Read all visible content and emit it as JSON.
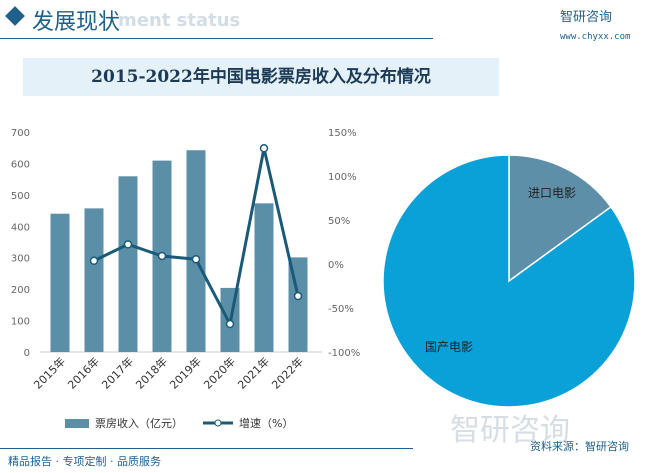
{
  "header": {
    "title": "发展现状",
    "subtitle": "ment status",
    "logo": "智研咨询",
    "url": "www.chyxx.com"
  },
  "footer": {
    "slogan": "精品报告 · 专项定制 · 品质服务",
    "source": "资料来源：智研咨询",
    "watermark": "智研咨询"
  },
  "chart_data": [
    {
      "type": "bar+line",
      "title": "2015-2022年中国电影票房收入及分布情况",
      "categories": [
        "2015年",
        "2016年",
        "2017年",
        "2018年",
        "2019年",
        "2020年",
        "2021年",
        "2022年"
      ],
      "series": [
        {
          "name": "票房收入（亿元）",
          "type": "bar",
          "axis": "left",
          "color": "#5b8fa8",
          "values": [
            440,
            457,
            559,
            609,
            642,
            204,
            473,
            301
          ]
        },
        {
          "name": "增速（%）",
          "type": "line",
          "axis": "right",
          "color": "#1a5a78",
          "values": [
            null,
            3.7,
            22.3,
            9.1,
            5.4,
            -68.2,
            131.5,
            -36.4
          ]
        }
      ],
      "left_axis": {
        "ylim": [
          0,
          700
        ],
        "ticks": [
          "0",
          "100",
          "200",
          "300",
          "400",
          "500",
          "600",
          "700"
        ]
      },
      "right_axis": {
        "ylim": [
          -100,
          150
        ],
        "ticks": [
          "-100%",
          "-50%",
          "0%",
          "50%",
          "100%",
          "150%"
        ]
      },
      "legend": "bottom",
      "grid": false
    },
    {
      "type": "pie",
      "slices": [
        {
          "label": "进口电影",
          "value": 15,
          "color": "#5d8fa8"
        },
        {
          "label": "国产电影",
          "value": 85,
          "color": "#0aa0d8"
        }
      ]
    }
  ]
}
